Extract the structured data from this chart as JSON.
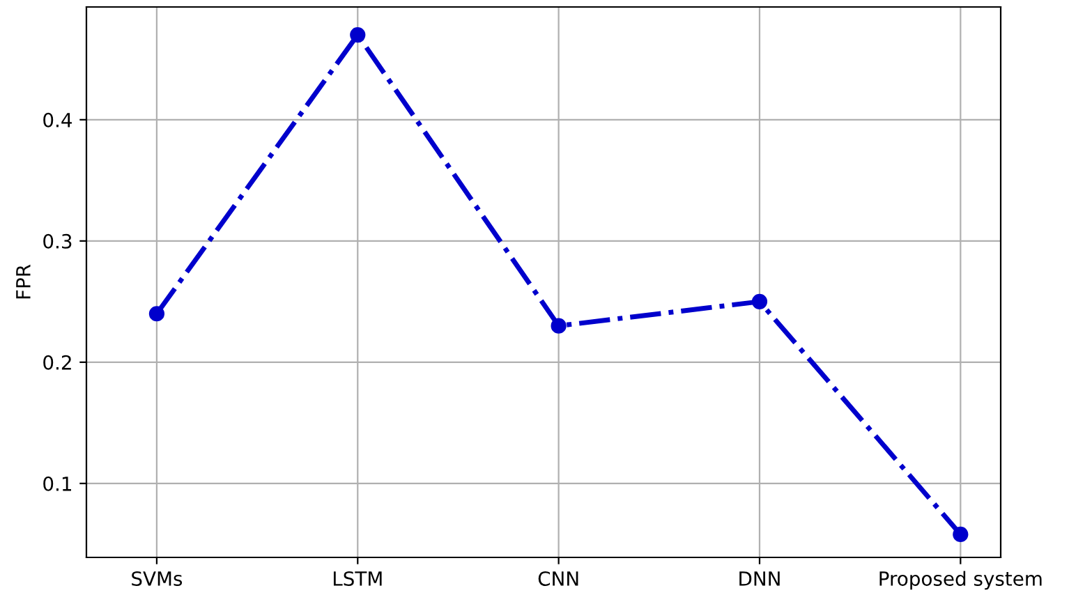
{
  "chart_data": {
    "type": "line",
    "ylabel": "FPR",
    "categories": [
      "SVMs",
      "LSTM",
      "CNN",
      "DNN",
      "Proposed system"
    ],
    "series": [
      {
        "color": "#0000cc",
        "values": [
          0.24,
          0.47,
          0.23,
          0.25,
          0.058
        ]
      }
    ],
    "ylim": [
      0.039,
      0.493
    ],
    "yticks": [
      0.1,
      0.2,
      0.3,
      0.4
    ],
    "grid": true,
    "marker": "circle",
    "line_style": "dashdot"
  }
}
